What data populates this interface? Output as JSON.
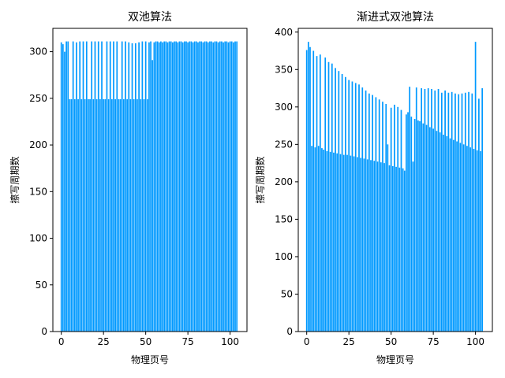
{
  "chart_data": [
    {
      "type": "bar",
      "title": "双池算法",
      "xlabel": "物理页号",
      "ylabel": "擦写周期数",
      "xlim": [
        -5,
        110
      ],
      "ylim": [
        0,
        325
      ],
      "xticks": [
        0,
        25,
        50,
        75,
        100
      ],
      "yticks": [
        0,
        50,
        100,
        150,
        200,
        250,
        300
      ],
      "color": "#0099ff",
      "x": [
        0,
        1,
        2,
        3,
        4,
        5,
        6,
        7,
        8,
        9,
        10,
        11,
        12,
        13,
        14,
        15,
        16,
        17,
        18,
        19,
        20,
        21,
        22,
        23,
        24,
        25,
        26,
        27,
        28,
        29,
        30,
        31,
        32,
        33,
        34,
        35,
        36,
        37,
        38,
        39,
        40,
        41,
        42,
        43,
        44,
        45,
        46,
        47,
        48,
        49,
        50,
        51,
        52,
        53,
        54,
        55,
        56,
        57,
        58,
        59,
        60,
        61,
        62,
        63,
        64,
        65,
        66,
        67,
        68,
        69,
        70,
        71,
        72,
        73,
        74,
        75,
        76,
        77,
        78,
        79,
        80,
        81,
        82,
        83,
        84,
        85,
        86,
        87,
        88,
        89,
        90,
        91,
        92,
        93,
        94,
        95,
        96,
        97,
        98,
        99,
        100,
        101,
        102,
        103,
        104
      ],
      "values": [
        310,
        308,
        300,
        311,
        311,
        249,
        249,
        311,
        249,
        310,
        249,
        311,
        249,
        311,
        249,
        311,
        249,
        249,
        311,
        249,
        311,
        249,
        311,
        249,
        311,
        249,
        249,
        311,
        249,
        311,
        249,
        311,
        249,
        311,
        249,
        249,
        311,
        249,
        311,
        249,
        310,
        249,
        309,
        249,
        309,
        249,
        310,
        249,
        311,
        249,
        311,
        249,
        310,
        311,
        291,
        310,
        311,
        311,
        310,
        311,
        310,
        311,
        311,
        310,
        311,
        311,
        310,
        311,
        311,
        310,
        311,
        311,
        310,
        311,
        311,
        310,
        311,
        311,
        310,
        311,
        311,
        310,
        311,
        311,
        310,
        311,
        311,
        310,
        311,
        311,
        310,
        311,
        311,
        310,
        311,
        311,
        310,
        311,
        311,
        310,
        311,
        311,
        310,
        311,
        311
      ]
    },
    {
      "type": "bar",
      "title": "渐进式双池算法",
      "xlabel": "物理页号",
      "ylabel": "擦写周期数",
      "xlim": [
        -5,
        110
      ],
      "ylim": [
        0,
        405
      ],
      "xticks": [
        0,
        25,
        50,
        75,
        100
      ],
      "yticks": [
        0,
        50,
        100,
        150,
        200,
        250,
        300,
        350,
        400
      ],
      "color": "#0099ff",
      "x": [
        0,
        1,
        2,
        3,
        4,
        5,
        6,
        7,
        8,
        9,
        10,
        11,
        12,
        13,
        14,
        15,
        16,
        17,
        18,
        19,
        20,
        21,
        22,
        23,
        24,
        25,
        26,
        27,
        28,
        29,
        30,
        31,
        32,
        33,
        34,
        35,
        36,
        37,
        38,
        39,
        40,
        41,
        42,
        43,
        44,
        45,
        46,
        47,
        48,
        49,
        50,
        51,
        52,
        53,
        54,
        55,
        56,
        57,
        58,
        59,
        60,
        61,
        62,
        63,
        64,
        65,
        66,
        67,
        68,
        69,
        70,
        71,
        72,
        73,
        74,
        75,
        76,
        77,
        78,
        79,
        80,
        81,
        82,
        83,
        84,
        85,
        86,
        87,
        88,
        89,
        90,
        91,
        92,
        93,
        94,
        95,
        96,
        97,
        98,
        99,
        100,
        101,
        102,
        103,
        104
      ],
      "values": [
        376,
        387,
        380,
        248,
        375,
        246,
        368,
        248,
        370,
        245,
        243,
        366,
        241,
        360,
        240,
        358,
        239,
        352,
        238,
        348,
        237,
        344,
        236,
        340,
        236,
        336,
        235,
        334,
        234,
        332,
        233,
        330,
        232,
        326,
        231,
        322,
        230,
        318,
        229,
        316,
        228,
        313,
        227,
        310,
        226,
        307,
        225,
        304,
        250,
        222,
        299,
        221,
        303,
        220,
        300,
        219,
        296,
        218,
        215,
        290,
        293,
        327,
        287,
        227,
        284,
        326,
        282,
        281,
        325,
        278,
        324,
        276,
        325,
        273,
        324,
        271,
        322,
        268,
        324,
        266,
        319,
        263,
        322,
        261,
        319,
        258,
        320,
        256,
        318,
        254,
        317,
        252,
        318,
        250,
        319,
        248,
        320,
        246,
        318,
        244,
        387,
        242,
        311,
        241,
        325
      ]
    }
  ]
}
